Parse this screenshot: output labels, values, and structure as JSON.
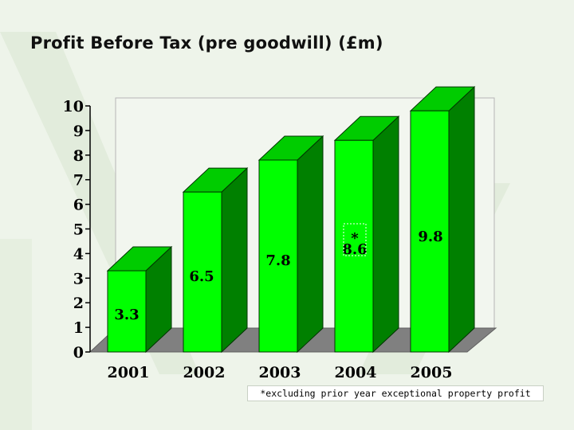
{
  "title": "Profit Before Tax (pre goodwill) (£m)",
  "footnote": "*excluding prior year exceptional property profit",
  "colors": {
    "bar_front": "#00ff00",
    "bar_top": "#00cc00",
    "bar_side": "#008000",
    "floor": "#808080",
    "background": "#eef4ea"
  },
  "chart_data": {
    "type": "bar",
    "style": "3d",
    "title": "",
    "categories": [
      "2001",
      "2002",
      "2003",
      "2004",
      "2005"
    ],
    "values": [
      3.3,
      6.5,
      7.8,
      8.6,
      9.8
    ],
    "value_labels": [
      "3.3",
      "6.5",
      "7.8",
      "8.6",
      "9.8"
    ],
    "annotations": [
      {
        "category": "2004",
        "text": "*"
      }
    ],
    "yticks": [
      "0",
      "1",
      "2",
      "3",
      "4",
      "5",
      "6",
      "7",
      "8",
      "9",
      "10"
    ],
    "ylim": [
      0,
      10
    ],
    "xlabel": "",
    "ylabel": "",
    "grid": false,
    "legend": "none"
  }
}
